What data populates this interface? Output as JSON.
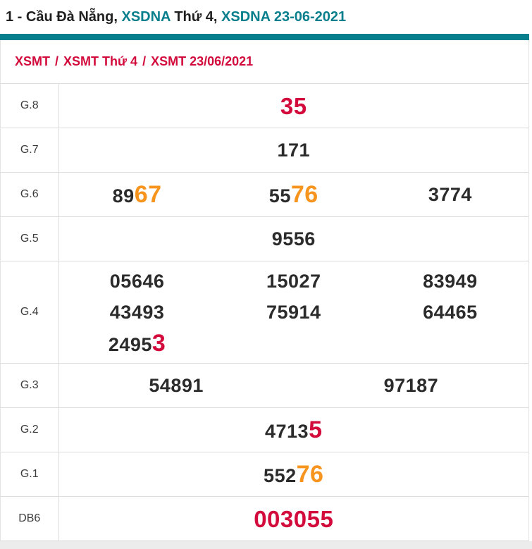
{
  "colors": {
    "teal": "#087f8c",
    "red": "#d20b3c",
    "orange": "#f7941e",
    "text_dark": "#2b2b2b",
    "label_gray": "#3b3b3b",
    "border_gray": "#dddddd"
  },
  "title": {
    "segments": [
      {
        "text": "1 - Cầu Đà Nẵng, ",
        "color": "dark"
      },
      {
        "text": "XSDNA",
        "color": "teal"
      },
      {
        "text": " Thứ 4, ",
        "color": "dark"
      },
      {
        "text": "XSDNA 23-06-2021",
        "color": "teal"
      }
    ]
  },
  "breadcrumb": {
    "separator": "/",
    "items": [
      {
        "label": "XSMT"
      },
      {
        "label": "XSMT Thứ 4"
      },
      {
        "label": "XSMT 23/06/2021"
      }
    ]
  },
  "results": {
    "rows": [
      {
        "label": "G.8",
        "lines": [
          [
            [
              {
                "t": "35",
                "hl": "red-big"
              }
            ]
          ]
        ]
      },
      {
        "label": "G.7",
        "lines": [
          [
            [
              {
                "t": "171"
              }
            ]
          ]
        ]
      },
      {
        "label": "G.6",
        "lines": [
          [
            [
              {
                "t": "89"
              },
              {
                "t": "67",
                "hl": "orange"
              }
            ],
            [
              {
                "t": "55"
              },
              {
                "t": "76",
                "hl": "orange"
              }
            ],
            [
              {
                "t": "3774"
              }
            ]
          ]
        ]
      },
      {
        "label": "G.5",
        "lines": [
          [
            [
              {
                "t": "9556"
              }
            ]
          ]
        ]
      },
      {
        "label": "G.4",
        "lines": [
          [
            [
              {
                "t": "05646"
              }
            ],
            [
              {
                "t": "15027"
              }
            ],
            [
              {
                "t": "83949"
              }
            ]
          ],
          [
            [
              {
                "t": "43493"
              }
            ],
            [
              {
                "t": "75914"
              }
            ],
            [
              {
                "t": "64465"
              }
            ]
          ],
          [
            [
              {
                "t": "2495"
              },
              {
                "t": "3",
                "hl": "red"
              }
            ],
            [],
            []
          ]
        ]
      },
      {
        "label": "G.3",
        "lines": [
          [
            [
              {
                "t": "54891"
              }
            ],
            [
              {
                "t": "97187"
              }
            ]
          ]
        ]
      },
      {
        "label": "G.2",
        "lines": [
          [
            [
              {
                "t": "4713"
              },
              {
                "t": "5",
                "hl": "red"
              }
            ]
          ]
        ]
      },
      {
        "label": "G.1",
        "lines": [
          [
            [
              {
                "t": "552"
              },
              {
                "t": "76",
                "hl": "orange"
              }
            ]
          ]
        ]
      },
      {
        "label": "DB6",
        "lines": [
          [
            [
              {
                "t": "003055",
                "hl": "red-big"
              }
            ]
          ]
        ]
      }
    ]
  }
}
